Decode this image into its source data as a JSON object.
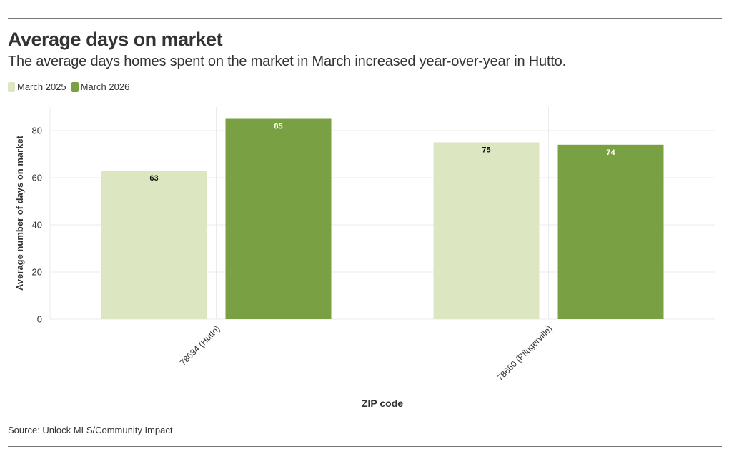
{
  "header": {
    "title": "Average days on market",
    "subtitle": "The average days homes spent on the market in March increased year-over-year in Hutto."
  },
  "footer": {
    "source": "Source: Unlock MLS/Community Impact"
  },
  "colors": {
    "series_2025": "#dce7c2",
    "series_2026": "#79a042",
    "grid": "#ebebeb",
    "text": "#333333"
  },
  "chart_data": {
    "type": "bar",
    "title": "Average days on market",
    "subtitle": "The average days homes spent on the market in March increased year-over-year in Hutto.",
    "xlabel": "ZIP code",
    "ylabel": "Average number of days on market",
    "ylim": [
      0,
      90
    ],
    "yticks": [
      0,
      20,
      40,
      60,
      80
    ],
    "grid": true,
    "legend": "top-left",
    "categories": [
      "78634 (Hutto)",
      "78660 (Pflugerville)"
    ],
    "series": [
      {
        "name": "March 2025",
        "color": "#dce7c2",
        "label_color": "#111111",
        "values": [
          63,
          75
        ]
      },
      {
        "name": "March 2026",
        "color": "#79a042",
        "label_color": "#ffffff",
        "values": [
          85,
          74
        ]
      }
    ]
  }
}
